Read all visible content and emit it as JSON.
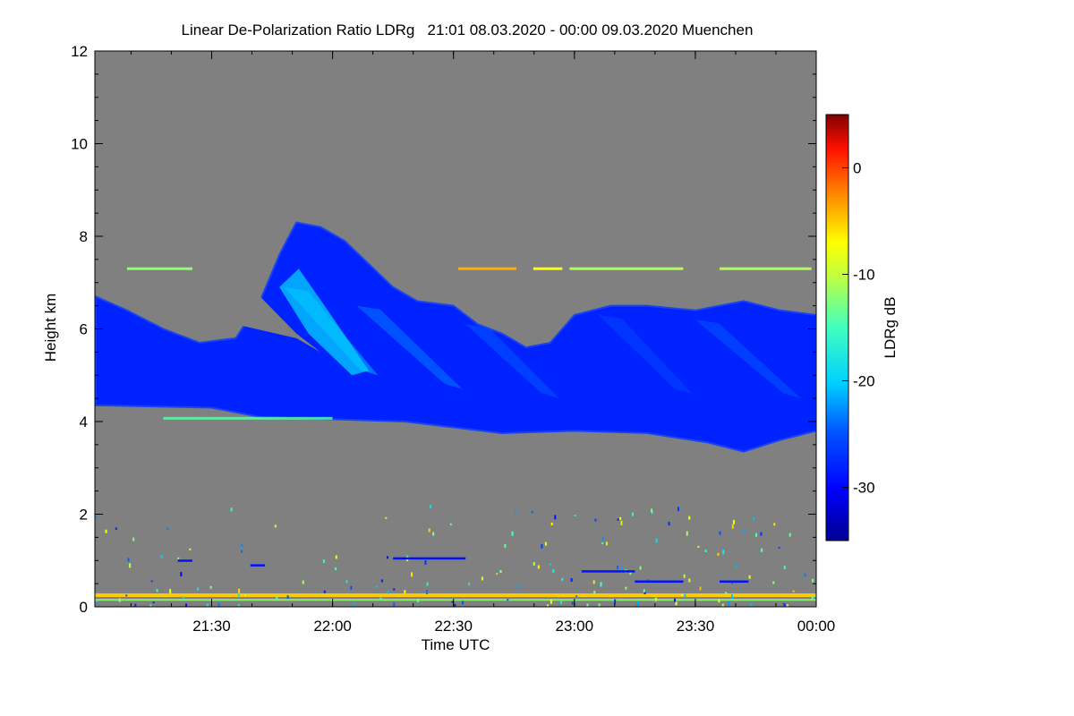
{
  "chart_data": {
    "type": "heatmap",
    "title": "Linear De-Polarization Ratio LDRg   21:01 08.03.2020 - 00:00 09.03.2020 Muenchen",
    "xlabel": "Time UTC",
    "ylabel": "Height km",
    "xlim_hours": [
      21.017,
      24.0
    ],
    "ylim": [
      0,
      12
    ],
    "x_ticks": [
      {
        "value": 21.5,
        "label": "21:30"
      },
      {
        "value": 22.0,
        "label": "22:00"
      },
      {
        "value": 22.5,
        "label": "22:30"
      },
      {
        "value": 23.0,
        "label": "23:00"
      },
      {
        "value": 23.5,
        "label": "23:30"
      },
      {
        "value": 24.0,
        "label": "00:00"
      }
    ],
    "y_ticks": [
      {
        "value": 0,
        "label": "0"
      },
      {
        "value": 2,
        "label": "2"
      },
      {
        "value": 4,
        "label": "4"
      },
      {
        "value": 6,
        "label": "6"
      },
      {
        "value": 8,
        "label": "8"
      },
      {
        "value": 10,
        "label": "10"
      },
      {
        "value": 12,
        "label": "12"
      }
    ],
    "colorbar": {
      "label": "LDRg dB",
      "range": [
        -35,
        5
      ],
      "ticks": [
        {
          "value": 0,
          "label": "0"
        },
        {
          "value": -10,
          "label": "-10"
        },
        {
          "value": -20,
          "label": "-20"
        },
        {
          "value": -30,
          "label": "-30"
        }
      ]
    },
    "background_color": "#808080",
    "features": {
      "cloud_layer": {
        "description_values_db": -28,
        "base_profile": [
          [
            21.02,
            4.35
          ],
          [
            21.5,
            4.3
          ],
          [
            21.7,
            4.1
          ],
          [
            22.0,
            4.05
          ],
          [
            22.3,
            4.0
          ],
          [
            22.7,
            3.75
          ],
          [
            23.0,
            3.8
          ],
          [
            23.3,
            3.75
          ],
          [
            23.55,
            3.55
          ],
          [
            23.7,
            3.35
          ],
          [
            23.85,
            3.6
          ],
          [
            24.0,
            3.8
          ]
        ],
        "top_profile": [
          [
            21.02,
            6.7
          ],
          [
            21.15,
            6.4
          ],
          [
            21.3,
            6.0
          ],
          [
            21.45,
            5.7
          ],
          [
            21.6,
            5.8
          ],
          [
            21.7,
            6.6
          ],
          [
            21.78,
            7.6
          ],
          [
            21.85,
            8.3
          ],
          [
            21.95,
            8.2
          ],
          [
            22.05,
            7.9
          ],
          [
            22.15,
            7.4
          ],
          [
            22.25,
            6.9
          ],
          [
            22.35,
            6.6
          ],
          [
            22.5,
            6.5
          ],
          [
            22.6,
            6.1
          ],
          [
            22.7,
            5.9
          ],
          [
            22.8,
            5.6
          ],
          [
            22.9,
            5.7
          ],
          [
            23.0,
            6.3
          ],
          [
            23.15,
            6.5
          ],
          [
            23.3,
            6.5
          ],
          [
            23.5,
            6.4
          ],
          [
            23.7,
            6.6
          ],
          [
            23.85,
            6.4
          ],
          [
            24.0,
            6.3
          ]
        ]
      },
      "aerosol_streaks": [
        {
          "x_start": 21.8,
          "x_end": 22.15,
          "h_start": 6.9,
          "h_end": 5.0,
          "value_db": -22
        },
        {
          "x_start": 22.1,
          "x_end": 22.5,
          "h_start": 6.5,
          "h_end": 4.7,
          "value_db": -24
        },
        {
          "x_start": 22.55,
          "x_end": 22.9,
          "h_start": 6.1,
          "h_end": 4.5,
          "value_db": -25
        },
        {
          "x_start": 23.1,
          "x_end": 23.45,
          "h_start": 6.3,
          "h_end": 4.6,
          "value_db": -26
        },
        {
          "x_start": 23.5,
          "x_end": 23.9,
          "h_start": 6.2,
          "h_end": 4.5,
          "value_db": -25
        }
      ],
      "elevated_layer_h_km": 7.3,
      "near_surface_layer_h_km": 0.25,
      "near_surface_value_db": -5
    }
  }
}
